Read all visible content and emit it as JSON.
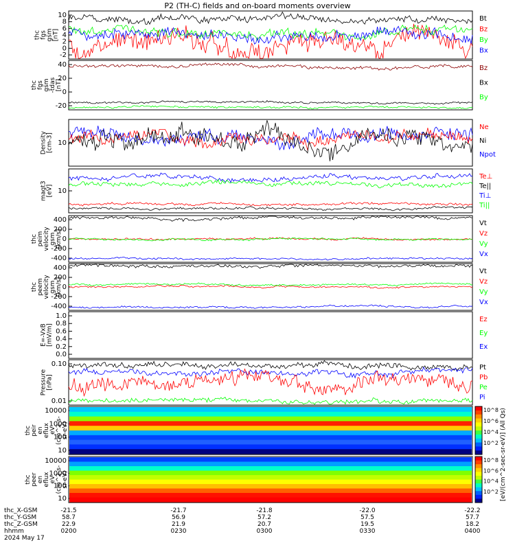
{
  "title": "P2 (TH-C) fields and on-board moments overview",
  "colors": {
    "black": "#000000",
    "red": "#ff0000",
    "green": "#00ff00",
    "blue": "#0000ff",
    "darkred": "#8b0000"
  },
  "panels": [
    {
      "ylabel": [
        "thc",
        "fgs",
        "gsm",
        "[nT]"
      ],
      "ticks": [
        "10",
        "8",
        "6",
        "4",
        "2",
        "0",
        "-2"
      ],
      "legend": [
        [
          "Bt",
          "black"
        ],
        [
          "Bz",
          "red"
        ],
        [
          "By",
          "green"
        ],
        [
          "Bx",
          "blue"
        ]
      ]
    },
    {
      "ylabel": [
        "thc",
        "fgs",
        "gsm",
        "-tdas",
        "[nT]"
      ],
      "ticks": [
        "40",
        "20",
        "0",
        "-20"
      ],
      "legend": [
        [
          "Bz",
          "darkred"
        ],
        [
          "Bx",
          "black"
        ],
        [
          "By",
          "green"
        ]
      ]
    },
    {
      "ylabel": [
        "Density",
        "[cm-3]"
      ],
      "ticks": [
        "10"
      ],
      "legend": [
        [
          "Ne",
          "red"
        ],
        [
          "Ni",
          "black"
        ],
        [
          "Npot",
          "blue"
        ]
      ]
    },
    {
      "ylabel": [
        "magt3",
        "[eV]"
      ],
      "ticks": [
        "10"
      ],
      "legend": [
        [
          "Te⊥",
          "red"
        ],
        [
          "Te||",
          "black"
        ],
        [
          "Ti⊥",
          "blue"
        ],
        [
          "Ti||",
          "green"
        ]
      ]
    },
    {
      "ylabel": [
        "thc",
        "peim",
        "velocity",
        "gsm",
        "[km/s]"
      ],
      "ticks": [
        "400",
        "200",
        "0",
        "-200",
        "-400"
      ],
      "legend": [
        [
          "Vt",
          "black"
        ],
        [
          "Vz",
          "red"
        ],
        [
          "Vy",
          "green"
        ],
        [
          "Vx",
          "blue"
        ]
      ]
    },
    {
      "ylabel": [
        "thc",
        "peem",
        "velocity",
        "gsm",
        "[km/s]"
      ],
      "ticks": [
        "400",
        "200",
        "0",
        "-200",
        "-400"
      ],
      "legend": [
        [
          "Vt",
          "black"
        ],
        [
          "Vz",
          "red"
        ],
        [
          "Vy",
          "green"
        ],
        [
          "Vx",
          "blue"
        ]
      ]
    },
    {
      "ylabel": [
        "E=-VxB",
        "[mV/m]"
      ],
      "ticks": [
        "1.0",
        "0.8",
        "0.6",
        "0.4",
        "0.2",
        "0.0"
      ],
      "legend": [
        [
          "Ez",
          "red"
        ],
        [
          "Ey",
          "green"
        ],
        [
          "Ex",
          "blue"
        ]
      ]
    },
    {
      "ylabel": [
        "Pressure",
        "[nPa]"
      ],
      "ticks": [
        "0.10",
        "0.01"
      ],
      "legend": [
        [
          "Pt",
          "black"
        ],
        [
          "Pb",
          "red"
        ],
        [
          "Pe",
          "green"
        ],
        [
          "Pi",
          "blue"
        ]
      ]
    },
    {
      "ylabel": [
        "thc",
        "peir",
        "en",
        "eflux",
        "eV",
        "(cm^2-s-",
        "sr-eV)"
      ],
      "ticks": [
        "10000",
        "1000",
        "100",
        "10"
      ],
      "legend": []
    },
    {
      "ylabel": [
        "thc",
        "peer",
        "en",
        "eflux",
        "eV",
        "(cm^2-s-",
        "sr-eV)"
      ],
      "ticks": [
        "10000",
        "1000",
        "100",
        "10"
      ],
      "legend": []
    }
  ],
  "colorbar": {
    "label": "[eV/(cm^2-sec-sr-eV)] (All Qs)",
    "upper_ticks": [
      "10^8",
      "10^6",
      "10^4",
      "10^2"
    ],
    "lower_ticks": [
      "10^8",
      "10^6",
      "10^4",
      "10^2"
    ]
  },
  "xaxis": {
    "rows": [
      {
        "label": "thc_X-GSM",
        "values": [
          "-21.5",
          "-21.7",
          "-21.8",
          "-22.0",
          "-22.2"
        ]
      },
      {
        "label": "thc_Y-GSM",
        "values": [
          "58.7",
          "56.9",
          "57.2",
          "57.5",
          "57.7"
        ]
      },
      {
        "label": "thc_Z-GSM",
        "values": [
          "22.9",
          "21.9",
          "20.7",
          "19.5",
          "18.2"
        ]
      },
      {
        "label": "hhmm",
        "values": [
          "0200",
          "0230",
          "0300",
          "0330",
          "0400"
        ]
      }
    ],
    "date": "2024 May 17"
  },
  "chart_data": {
    "type": "line",
    "title": "P2 (TH-C) fields and on-board moments overview",
    "x": [
      "0200",
      "0230",
      "0300",
      "0330",
      "0400"
    ],
    "series": [
      {
        "name": "Bt",
        "values": [
          8.5,
          9.5,
          7.5,
          9.5,
          10
        ]
      },
      {
        "name": "Bz",
        "values": [
          2,
          3,
          4,
          2,
          1
        ]
      },
      {
        "name": "By",
        "values": [
          5,
          6,
          6,
          6.5,
          7
        ]
      },
      {
        "name": "Bx",
        "values": [
          4,
          4,
          4,
          4,
          4.5
        ]
      }
    ],
    "ylim": [
      -2,
      10
    ]
  }
}
